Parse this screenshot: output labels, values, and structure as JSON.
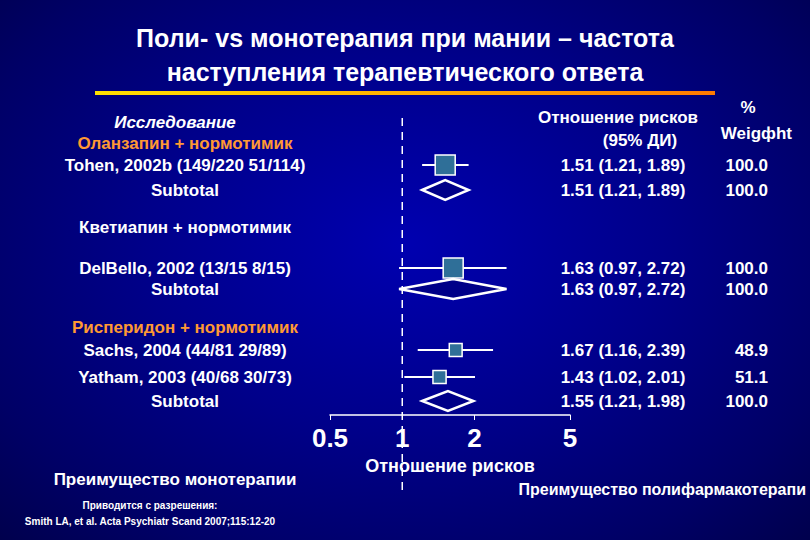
{
  "chart_data": {
    "type": "forest",
    "title": "Поли- vs монотерапия при мании – частота\nнаступления терапевтического ответа",
    "study_header": "Исследование",
    "effect_header": [
      "Отношение рисков",
      "(95% ДИ)"
    ],
    "weight_header": [
      "%",
      "Weigфht"
    ],
    "x_label": "Отношение рисков",
    "log": "x",
    "xlim": [
      0.5,
      5
    ],
    "xticks": [
      0.5,
      1,
      2,
      5
    ],
    "grid": false,
    "reference_line": 1,
    "groups": [
      {
        "name": "Оланзапин + нормотимик",
        "color": "#ff9933",
        "studies": [
          {
            "label": "Tohen, 2002b (149/220 51/114)",
            "rr": 1.51,
            "ci": [
              1.21,
              1.89
            ],
            "rr_label": "1.51 (1.21, 1.89)",
            "weight": 100.0,
            "weight_label": "100.0"
          }
        ],
        "subtotal": {
          "label": "Subtotal",
          "rr": 1.51,
          "ci": [
            1.21,
            1.89
          ],
          "rr_label": "1.51 (1.21, 1.89)",
          "weight": 100.0,
          "weight_label": "100.0"
        }
      },
      {
        "name": "Кветиапин + нормотимик",
        "color": "#ffffff",
        "studies": [
          {
            "label": "DelBello, 2002 (13/15 8/15)",
            "rr": 1.63,
            "ci": [
              0.97,
              2.72
            ],
            "rr_label": "1.63 (0.97, 2.72)",
            "weight": 100.0,
            "weight_label": "100.0"
          }
        ],
        "subtotal": {
          "label": "Subtotal",
          "rr": 1.63,
          "ci": [
            0.97,
            2.72
          ],
          "rr_label": "1.63 (0.97, 2.72)",
          "weight": 100.0,
          "weight_label": "100.0"
        }
      },
      {
        "name": "Рисперидон + нормотимик",
        "color": "#ff9933",
        "studies": [
          {
            "label": "Sachs, 2004 (44/81 29/89)",
            "rr": 1.67,
            "ci": [
              1.16,
              2.39
            ],
            "rr_label": "1.67 (1.16, 2.39)",
            "weight": 48.9,
            "weight_label": "48.9"
          },
          {
            "label": "Yatham, 2003 (40/68 30/73)",
            "rr": 1.43,
            "ci": [
              1.02,
              2.01
            ],
            "rr_label": "1.43 (1.02, 2.01)",
            "weight": 51.1,
            "weight_label": "51.1"
          }
        ],
        "subtotal": {
          "label": "Subtotal",
          "rr": 1.55,
          "ci": [
            1.21,
            1.98
          ],
          "rr_label": "1.55 (1.21, 1.98)",
          "weight": 100.0,
          "weight_label": "100.0"
        }
      }
    ],
    "left_note": "Преимущество монотерапии",
    "right_note": "Преимущество полифармакотерапи",
    "source": [
      "Приводится с разрешения:",
      "Smith LA, et al. Acta Psychiatr Scand 2007;115:12-20"
    ]
  }
}
